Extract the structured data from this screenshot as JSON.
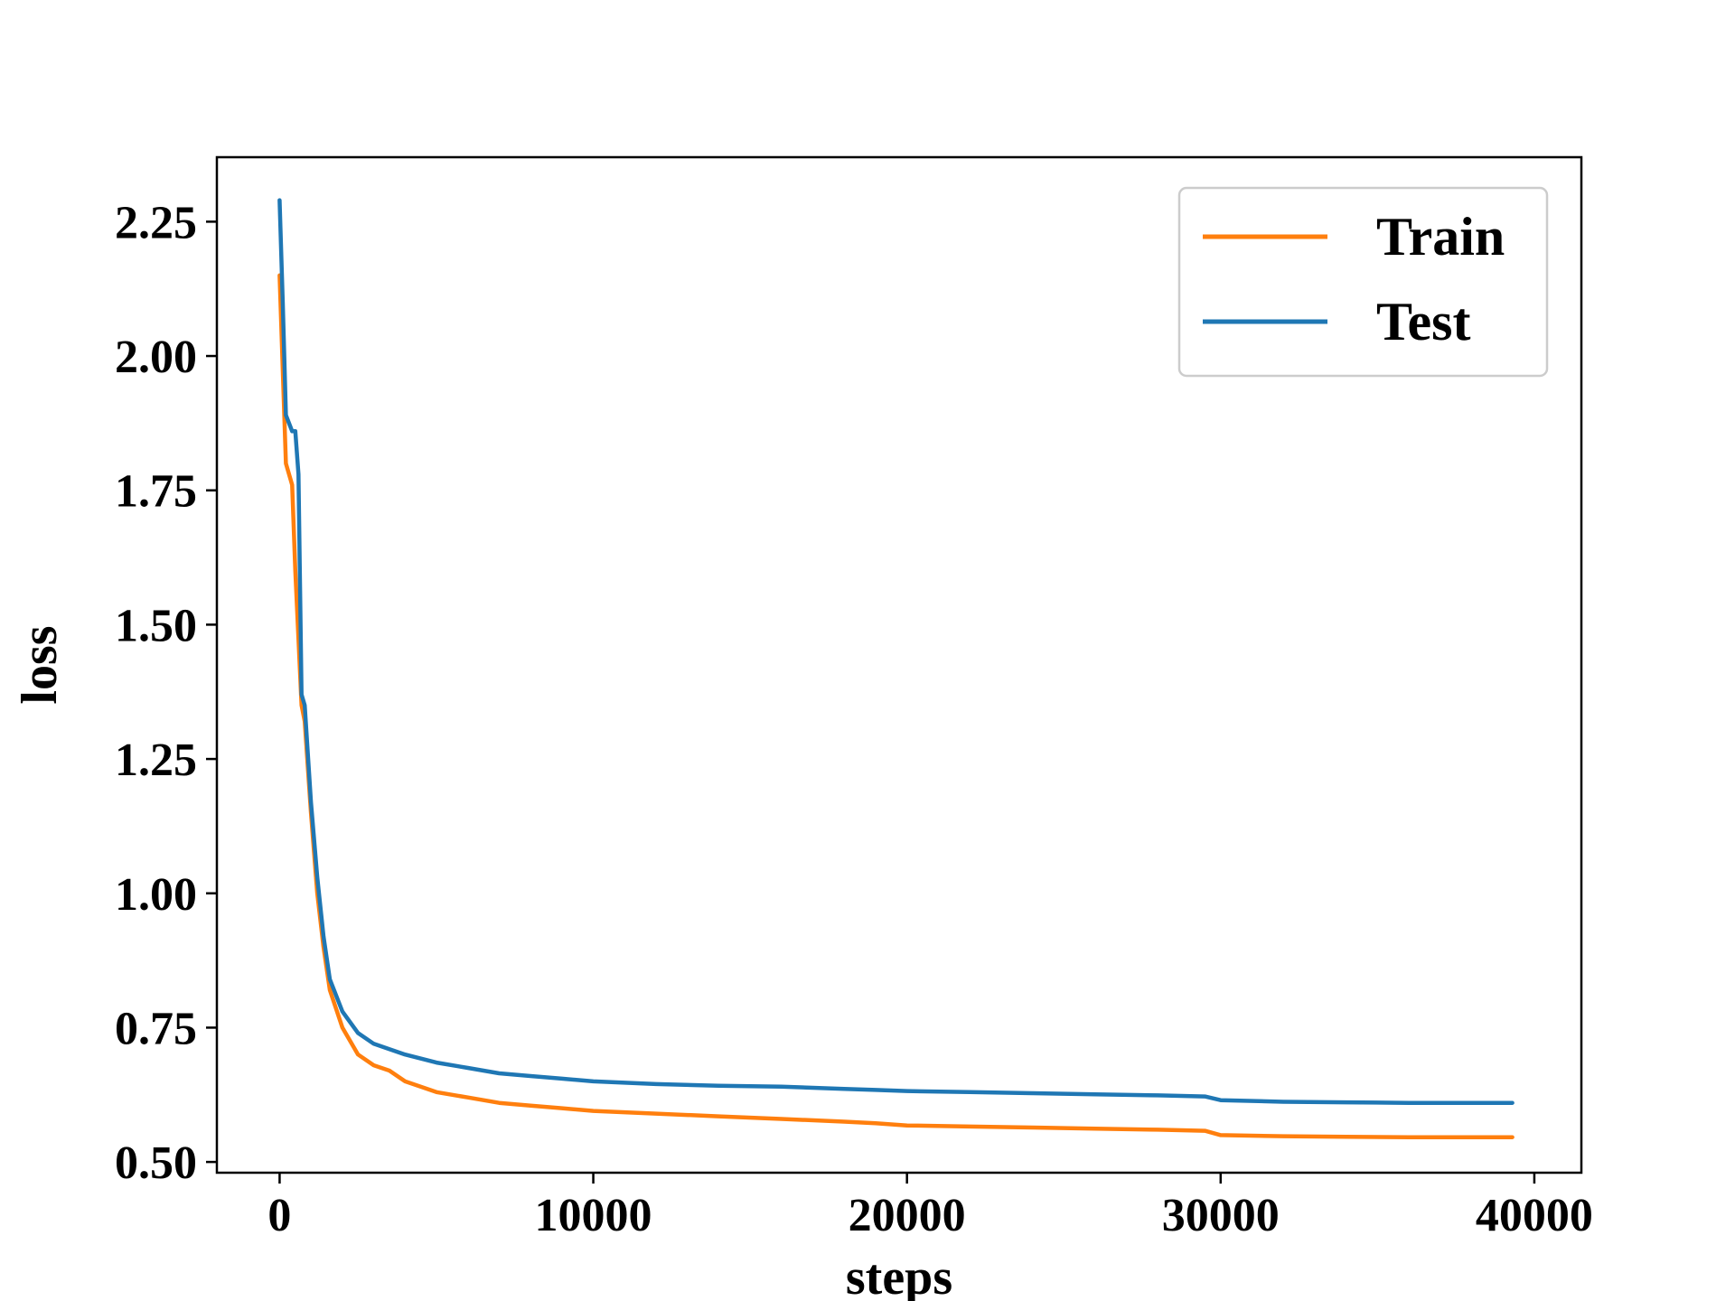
{
  "chart_data": {
    "type": "line",
    "title": "",
    "xlabel": "steps",
    "ylabel": "loss",
    "xlim": [
      -2000,
      41500
    ],
    "ylim": [
      0.48,
      2.37
    ],
    "xticks": [
      0,
      10000,
      20000,
      30000,
      40000
    ],
    "xtick_labels": [
      "0",
      "10000",
      "20000",
      "30000",
      "40000"
    ],
    "yticks": [
      0.5,
      0.75,
      1.0,
      1.25,
      1.5,
      1.75,
      2.0,
      2.25
    ],
    "ytick_labels": [
      "0.50",
      "0.75",
      "1.00",
      "1.25",
      "1.50",
      "1.75",
      "2.00",
      "2.25"
    ],
    "grid": false,
    "legend_position": "top-right",
    "series": [
      {
        "name": "Train",
        "color": "#ff7f0e",
        "x": [
          0,
          200,
          400,
          500,
          700,
          800,
          1000,
          1200,
          1400,
          1600,
          2000,
          2500,
          3000,
          3500,
          4000,
          5000,
          6000,
          7000,
          8000,
          9000,
          10000,
          12000,
          14000,
          16000,
          18000,
          19000,
          20000,
          22000,
          24000,
          26000,
          28000,
          29500,
          30000,
          32000,
          34000,
          36000,
          38000,
          39300
        ],
        "y": [
          2.15,
          1.8,
          1.76,
          1.6,
          1.35,
          1.32,
          1.15,
          1.0,
          0.9,
          0.82,
          0.75,
          0.7,
          0.68,
          0.67,
          0.65,
          0.63,
          0.62,
          0.61,
          0.605,
          0.6,
          0.595,
          0.59,
          0.585,
          0.58,
          0.575,
          0.572,
          0.568,
          0.566,
          0.564,
          0.562,
          0.56,
          0.558,
          0.55,
          0.548,
          0.547,
          0.546,
          0.546,
          0.546
        ]
      },
      {
        "name": "Test",
        "color": "#1f77b4",
        "x": [
          0,
          100,
          200,
          400,
          500,
          600,
          700,
          800,
          1000,
          1200,
          1400,
          1600,
          2000,
          2500,
          3000,
          3500,
          4000,
          5000,
          6000,
          7000,
          8000,
          9000,
          10000,
          12000,
          14000,
          16000,
          18000,
          19000,
          20000,
          22000,
          24000,
          26000,
          28000,
          29500,
          30000,
          32000,
          34000,
          36000,
          38000,
          39300
        ],
        "y": [
          2.29,
          2.1,
          1.89,
          1.86,
          1.86,
          1.78,
          1.37,
          1.35,
          1.17,
          1.03,
          0.92,
          0.84,
          0.78,
          0.74,
          0.72,
          0.71,
          0.7,
          0.685,
          0.675,
          0.665,
          0.66,
          0.655,
          0.65,
          0.645,
          0.642,
          0.64,
          0.636,
          0.634,
          0.632,
          0.63,
          0.628,
          0.626,
          0.624,
          0.622,
          0.615,
          0.612,
          0.611,
          0.61,
          0.61,
          0.61
        ]
      }
    ]
  }
}
